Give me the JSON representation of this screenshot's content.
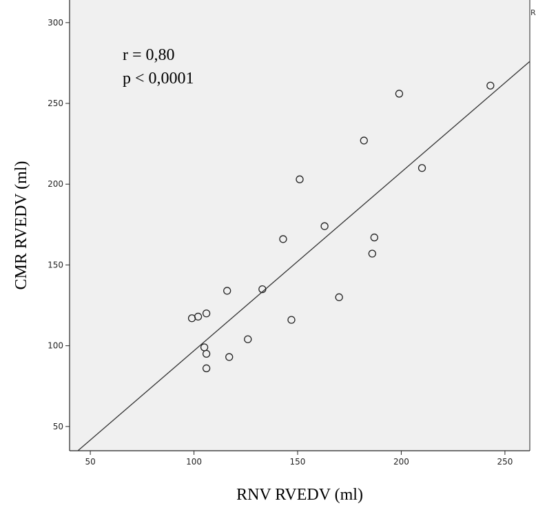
{
  "chart_data": {
    "type": "scatter",
    "title": "",
    "xlabel": "RNV RVEDV (ml)",
    "ylabel": "CMR RVEDV (ml)",
    "xlim": [
      40,
      262
    ],
    "ylim": [
      35,
      314
    ],
    "x_ticks": [
      50,
      100,
      150,
      200,
      250
    ],
    "y_ticks": [
      50,
      100,
      150,
      200,
      250,
      300
    ],
    "x_tick_labels": [
      "50",
      "100",
      "150",
      "200",
      "250"
    ],
    "y_tick_labels": [
      "50",
      "100",
      "150",
      "200",
      "250",
      "300"
    ],
    "grid": false,
    "annotations": [
      "r = 0,80",
      "p < 0,0001"
    ],
    "edge_glyph": "R",
    "points": [
      {
        "x": 99,
        "y": 117
      },
      {
        "x": 102,
        "y": 118
      },
      {
        "x": 106,
        "y": 120
      },
      {
        "x": 105,
        "y": 99
      },
      {
        "x": 106,
        "y": 95
      },
      {
        "x": 106,
        "y": 86
      },
      {
        "x": 116,
        "y": 134
      },
      {
        "x": 117,
        "y": 93
      },
      {
        "x": 126,
        "y": 104
      },
      {
        "x": 133,
        "y": 135
      },
      {
        "x": 143,
        "y": 166
      },
      {
        "x": 147,
        "y": 116
      },
      {
        "x": 151,
        "y": 203
      },
      {
        "x": 163,
        "y": 174
      },
      {
        "x": 170,
        "y": 130
      },
      {
        "x": 182,
        "y": 227
      },
      {
        "x": 186,
        "y": 157
      },
      {
        "x": 187,
        "y": 167
      },
      {
        "x": 199,
        "y": 256
      },
      {
        "x": 210,
        "y": 210
      },
      {
        "x": 243,
        "y": 261
      }
    ],
    "fit_line": [
      {
        "x": 44,
        "y": 35
      },
      {
        "x": 262,
        "y": 276
      }
    ]
  }
}
